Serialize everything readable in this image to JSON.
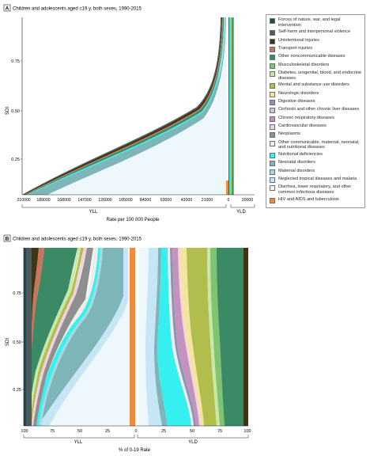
{
  "panelA": {
    "letter": "A",
    "title": "Children and adolescents aged ≤19 y, both sexes, 1990-2015",
    "yaxis_label": "SDI",
    "yll_label": "YLL",
    "yld_label": "YLD",
    "xaxis_label": "Rate per 100 000 People"
  },
  "panelB": {
    "letter": "B",
    "title": "Children and adolescents aged ≤19 y, both sexes, 1990-2015",
    "yaxis_label": "SDI",
    "yll_label": "YLL",
    "yld_label": "YLD",
    "xaxis_label": "% of 0-19 Rate"
  },
  "legend": [
    {
      "label": "Forces of nature, war, and legal intervention",
      "color": "#23484f"
    },
    {
      "label": "Self-harm and interpersonal violence",
      "color": "#4a5a5d"
    },
    {
      "label": "Unintentional injuries",
      "color": "#3f3614"
    },
    {
      "label": "Transport injuries",
      "color": "#c8775f"
    },
    {
      "label": "Other noncommunicable diseases",
      "color": "#3a8a66"
    },
    {
      "label": "Musculoskeletal disorders",
      "color": "#7fc46f"
    },
    {
      "label": "Diabetes, urogenital, blood, and endocrine diseases",
      "color": "#c9e8a8"
    },
    {
      "label": "Mental and substance use disorders",
      "color": "#b1bd4c"
    },
    {
      "label": "Neurologic disorders",
      "color": "#f3e4a0"
    },
    {
      "label": "Digestive diseases",
      "color": "#8c93b8"
    },
    {
      "label": "Cirrhosis and other chronic liver diseases",
      "color": "#c5c7df"
    },
    {
      "label": "Chronic respiratory diseases",
      "color": "#c392bd"
    },
    {
      "label": "Cardiovascular diseases",
      "color": "#f0d0e4"
    },
    {
      "label": "Neoplasms",
      "color": "#8f8f8f"
    },
    {
      "label": "Other communicable, maternal, neonatal, and nutritional diseases",
      "color": "#ededed"
    },
    {
      "label": "Nutritional deficiencies",
      "color": "#35f0ef"
    },
    {
      "label": "Neonatal disorders",
      "color": "#7db5b8"
    },
    {
      "label": "Maternal disorders",
      "color": "#a8d8de"
    },
    {
      "label": "Neglected tropical diseases and malaria",
      "color": "#c6e6f6"
    },
    {
      "label": "Diarrhea, lower respiratory, and other common infectious diseases",
      "color": "#eef7fc"
    },
    {
      "label": "HIV and AIDS and tuberculosis",
      "color": "#f08a3c"
    }
  ],
  "chart_data": [
    {
      "type": "area",
      "panel": "A",
      "title": "Children and adolescents aged ≤19 y, both sexes, 1990-2015",
      "xlabel": "Rate per 100 000 People",
      "ylabel": "SDI",
      "ylim": [
        0.05,
        1.0
      ],
      "xlim": [
        -210000,
        20000
      ],
      "x_ticks": [
        "210000",
        "189000",
        "168000",
        "147000",
        "126000",
        "105000",
        "84000",
        "63000",
        "42000",
        "21000",
        "0",
        "20000"
      ],
      "y_ticks": [
        "0.25",
        "0.50",
        "0.75"
      ],
      "yll_total": {
        "sdi": [
          0.05,
          0.1,
          0.15,
          0.2,
          0.25,
          0.3,
          0.35,
          0.4,
          0.45,
          0.5,
          0.55,
          0.6,
          0.65,
          0.7,
          0.75,
          0.8,
          0.85,
          0.9,
          0.95,
          1.0
        ],
        "rate": [
          210000,
          180000,
          150000,
          122000,
          98000,
          78000,
          60000,
          46000,
          36000,
          28000,
          22000,
          17000,
          13000,
          9500,
          7000,
          5200,
          3900,
          3000,
          2400,
          2000
        ]
      },
      "yld_total": {
        "sdi": [
          0.05,
          1.0
        ],
        "rate": [
          4000,
          3500
        ]
      }
    },
    {
      "type": "area",
      "panel": "B",
      "title": "Children and adolescents aged ≤19 y, both sexes, 1990-2015",
      "xlabel": "% of 0-19 Rate",
      "ylabel": "SDI",
      "ylim": [
        0.05,
        1.0
      ],
      "x_ticks": [
        "100",
        "75",
        "50",
        "25",
        "0",
        "25",
        "50",
        "75",
        "100"
      ],
      "y_ticks": [
        "0.25",
        "0.50",
        "0.75"
      ],
      "sdi": [
        0.05,
        0.5,
        0.95
      ]
    }
  ]
}
